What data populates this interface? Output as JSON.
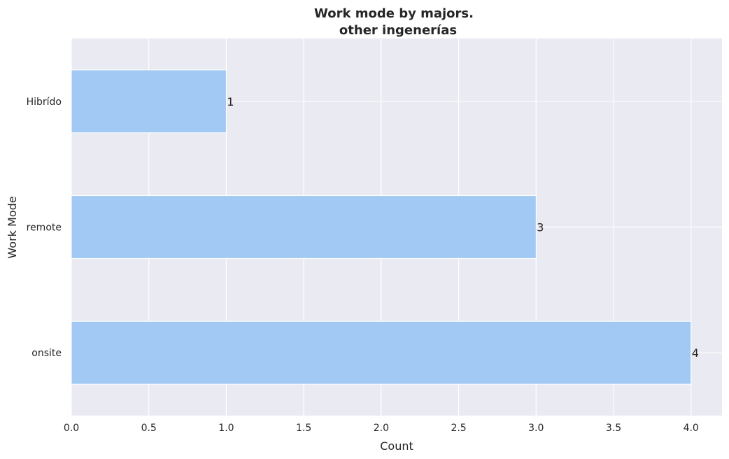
{
  "chart_data": {
    "type": "bar",
    "orientation": "horizontal",
    "title": [
      "Work mode by majors.",
      "other ingenerías"
    ],
    "xlabel": "Count",
    "ylabel": "Work Mode",
    "categories": [
      "Hibrído",
      "remote",
      "onsite"
    ],
    "values": [
      1,
      3,
      4
    ],
    "data_labels": [
      "1",
      "3",
      "4"
    ],
    "xlim": [
      0,
      4.2
    ],
    "xticks": [
      0,
      0.5,
      1,
      1.5,
      2,
      2.5,
      3,
      3.5,
      4
    ],
    "xtick_labels": [
      "0.0",
      "0.5",
      "1.0",
      "1.5",
      "2.0",
      "2.5",
      "3.0",
      "3.5",
      "4.0"
    ],
    "grid": true,
    "colors": {
      "bar": "#a1c9f4",
      "plot_background": "#eaeaf2",
      "grid": "#ffffff",
      "text": "#262626"
    }
  }
}
